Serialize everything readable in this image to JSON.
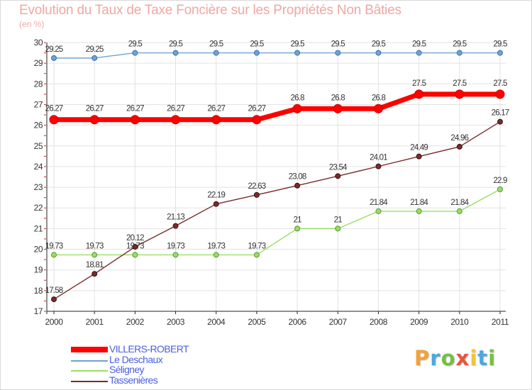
{
  "title": "Evolution du Taux de Taxe Foncière sur les Propriétés Non Bâties",
  "subtitle": "(en %)",
  "brand": {
    "letters": [
      "P",
      "r",
      "o",
      "x",
      "i",
      "t",
      "i"
    ],
    "colors": [
      "#f2a23a",
      "#4da7e0",
      "#76c043",
      "#e8553b",
      "#f2c43a",
      "#4da7e0",
      "#76c043"
    ]
  },
  "chart_data": {
    "type": "line",
    "title": "Evolution du Taux de Taxe Foncière sur les Propriétés Non Bâties",
    "subtitle": "(en %)",
    "xlabel": "",
    "ylabel": "",
    "ylim": [
      17,
      30
    ],
    "yticks": [
      17,
      18,
      19,
      20,
      21,
      22,
      23,
      24,
      25,
      26,
      27,
      28,
      29,
      30
    ],
    "x": [
      "2000",
      "2001",
      "2002",
      "2003",
      "2004",
      "2005",
      "2006",
      "2007",
      "2008",
      "2009",
      "2010",
      "2011"
    ],
    "grid": true,
    "legend_position": "bottom-left",
    "series": [
      {
        "name": "VILLERS-ROBERT",
        "color": "#ff0000",
        "values": [
          26.27,
          26.27,
          26.27,
          26.27,
          26.27,
          26.27,
          26.8,
          26.8,
          26.8,
          27.5,
          27.5,
          27.5
        ],
        "labels": [
          "26.27",
          "26.27",
          "26.27",
          "26.27",
          "26.27",
          "26.27",
          "26.8",
          "26.8",
          "26.8",
          "27.5",
          "27.5",
          "27.5"
        ]
      },
      {
        "name": "Le Deschaux",
        "color": "#6fa3d3",
        "values": [
          29.25,
          29.25,
          29.5,
          29.5,
          29.5,
          29.5,
          29.5,
          29.5,
          29.5,
          29.5,
          29.5,
          29.5
        ],
        "labels": [
          "29.25",
          "29.25",
          "29.5",
          "29.5",
          "29.5",
          "29.5",
          "29.5",
          "29.5",
          "29.5",
          "29.5",
          "29.5",
          "29.5"
        ]
      },
      {
        "name": "Séligney",
        "color": "#99dd66",
        "values": [
          19.73,
          19.73,
          19.73,
          19.73,
          19.73,
          19.73,
          21,
          21,
          21.84,
          21.84,
          21.84,
          22.9
        ],
        "labels": [
          "19.73",
          "19.73",
          "19.73",
          "19.73",
          "19.73",
          "19.73",
          "21",
          "21",
          "21.84",
          "21.84",
          "21.84",
          "22.9"
        ]
      },
      {
        "name": "Tassenières",
        "color": "#7a2b2b",
        "values": [
          17.58,
          18.81,
          20.12,
          21.13,
          22.19,
          22.63,
          23.08,
          23.54,
          24.01,
          24.49,
          24.96,
          26.17
        ],
        "labels": [
          "17.58",
          "18.81",
          "20.12",
          "21.13",
          "22.19",
          "22.63",
          "23.08",
          "23.54",
          "24.01",
          "24.49",
          "24.96",
          "26.17"
        ]
      }
    ]
  }
}
